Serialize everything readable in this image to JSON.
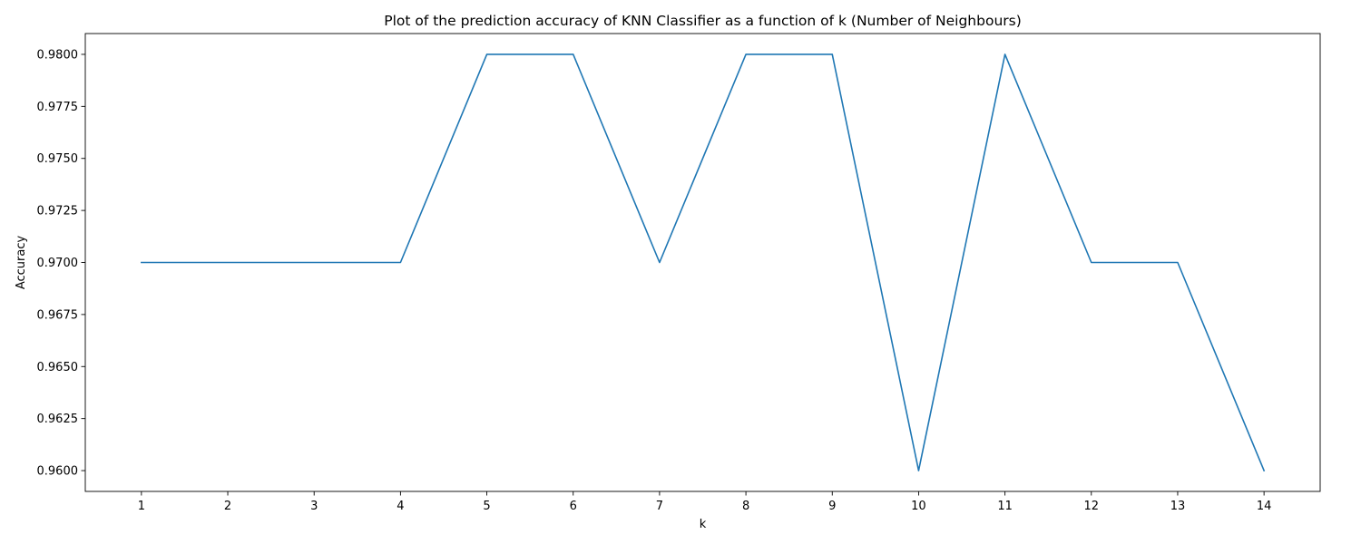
{
  "chart_data": {
    "type": "line",
    "title": "Plot of the prediction accuracy of KNN Classifier as a function of k (Number of Neighbours)",
    "xlabel": "k",
    "ylabel": "Accuracy",
    "x": [
      1,
      2,
      3,
      4,
      5,
      6,
      7,
      8,
      9,
      10,
      11,
      12,
      13,
      14
    ],
    "y": [
      0.97,
      0.97,
      0.97,
      0.97,
      0.98,
      0.98,
      0.97,
      0.98,
      0.98,
      0.96,
      0.98,
      0.97,
      0.97,
      0.96
    ],
    "xticks": [
      "1",
      "2",
      "3",
      "4",
      "5",
      "6",
      "7",
      "8",
      "9",
      "10",
      "11",
      "12",
      "13",
      "14"
    ],
    "yticks": [
      0.96,
      0.9625,
      0.965,
      0.9675,
      0.97,
      0.9725,
      0.975,
      0.9775,
      0.98
    ],
    "ytick_labels": [
      "0.9600",
      "0.9625",
      "0.9650",
      "0.9675",
      "0.9700",
      "0.9725",
      "0.9750",
      "0.9775",
      "0.9800"
    ],
    "xlim": [
      0.35,
      14.65
    ],
    "ylim": [
      0.959,
      0.981
    ],
    "grid": false,
    "line_color": "#1f77b4"
  }
}
